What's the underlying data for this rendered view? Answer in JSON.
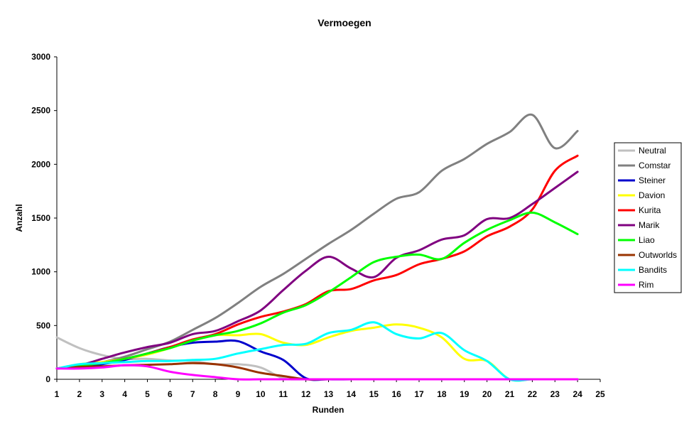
{
  "chart_data": {
    "type": "line",
    "title": "Vermoegen",
    "xlabel": "Runden",
    "ylabel": "Anzahl",
    "xlim": [
      1,
      25
    ],
    "ylim": [
      0,
      3000
    ],
    "x_ticks": [
      "1",
      "2",
      "3",
      "4",
      "5",
      "6",
      "7",
      "8",
      "9",
      "10",
      "11",
      "12",
      "13",
      "14",
      "15",
      "16",
      "17",
      "18",
      "19",
      "20",
      "21",
      "22",
      "23",
      "24",
      "25"
    ],
    "y_ticks": [
      "0",
      "500",
      "1000",
      "1500",
      "2000",
      "2500",
      "3000"
    ],
    "grid": false,
    "legend_position": "right",
    "x": [
      1,
      2,
      3,
      4,
      5,
      6,
      7,
      8,
      9,
      10,
      11,
      12,
      13,
      14,
      15,
      16,
      17,
      18,
      19,
      20,
      21,
      22,
      23,
      24
    ],
    "series": [
      {
        "name": "Neutral",
        "color": "#c0c0c0",
        "values": [
          390,
          290,
          225,
          190,
          190,
          175,
          170,
          140,
          140,
          110,
          10,
          0,
          0,
          0,
          0,
          0,
          0,
          0,
          0,
          0,
          0,
          0,
          0,
          0
        ]
      },
      {
        "name": "Comstar",
        "color": "#808080",
        "values": [
          100,
          130,
          160,
          210,
          280,
          350,
          460,
          570,
          710,
          860,
          980,
          1120,
          1260,
          1390,
          1540,
          1680,
          1740,
          1940,
          2050,
          2190,
          2300,
          2460,
          2150,
          2310
        ]
      },
      {
        "name": "Steiner",
        "color": "#0000cc",
        "values": [
          100,
          120,
          140,
          180,
          240,
          300,
          340,
          350,
          355,
          260,
          180,
          10,
          0,
          0,
          0,
          0,
          0,
          0,
          0,
          0,
          0,
          0,
          0,
          0
        ]
      },
      {
        "name": "Davion",
        "color": "#ffff00",
        "values": [
          100,
          140,
          160,
          190,
          230,
          290,
          360,
          410,
          410,
          420,
          340,
          320,
          390,
          450,
          480,
          510,
          480,
          390,
          190,
          170,
          0,
          0,
          0,
          0
        ]
      },
      {
        "name": "Kurita",
        "color": "#ff0000",
        "values": [
          100,
          130,
          150,
          190,
          240,
          300,
          370,
          420,
          510,
          580,
          630,
          700,
          820,
          840,
          920,
          970,
          1070,
          1120,
          1190,
          1330,
          1420,
          1580,
          1940,
          2080
        ]
      },
      {
        "name": "Marik",
        "color": "#800080",
        "values": [
          100,
          130,
          190,
          250,
          300,
          340,
          420,
          450,
          540,
          640,
          830,
          1010,
          1140,
          1030,
          950,
          1130,
          1200,
          1300,
          1340,
          1490,
          1500,
          1630,
          1780,
          1930
        ]
      },
      {
        "name": "Liao",
        "color": "#00ff00",
        "values": [
          100,
          130,
          150,
          190,
          240,
          290,
          360,
          410,
          450,
          520,
          620,
          690,
          810,
          950,
          1090,
          1140,
          1160,
          1120,
          1270,
          1390,
          1480,
          1550,
          1460,
          1350
        ]
      },
      {
        "name": "Outworlds",
        "color": "#993300",
        "values": [
          100,
          115,
          120,
          130,
          135,
          140,
          150,
          140,
          110,
          60,
          30,
          0,
          0,
          0,
          0,
          0,
          0,
          0,
          0,
          0,
          0,
          0,
          0,
          0
        ]
      },
      {
        "name": "Bandits",
        "color": "#00ffff",
        "values": [
          100,
          140,
          150,
          160,
          170,
          170,
          180,
          190,
          240,
          280,
          320,
          330,
          430,
          460,
          530,
          420,
          380,
          430,
          270,
          170,
          0,
          0,
          0,
          0
        ]
      },
      {
        "name": "Rim",
        "color": "#ff00ff",
        "values": [
          100,
          100,
          110,
          130,
          120,
          70,
          40,
          20,
          0,
          0,
          0,
          0,
          0,
          0,
          0,
          0,
          0,
          0,
          0,
          0,
          0,
          0,
          0,
          0
        ]
      }
    ]
  }
}
